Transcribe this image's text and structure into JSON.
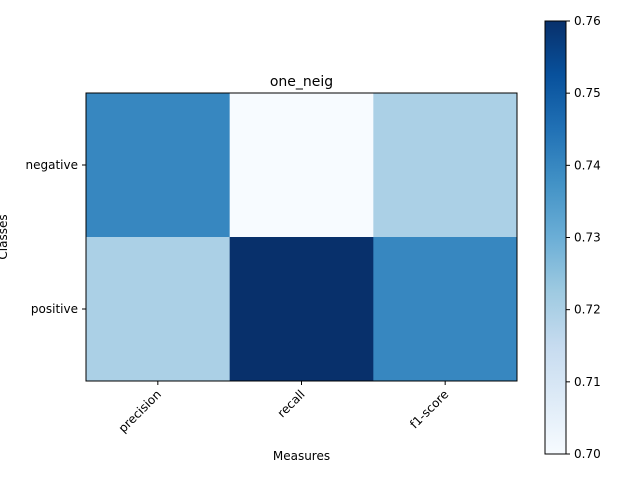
{
  "chart_data": {
    "type": "heatmap",
    "title": "one_neig",
    "xlabel": "Measures",
    "ylabel": "Classes",
    "x_categories": [
      "precision",
      "recall",
      "f1-score"
    ],
    "y_categories": [
      "negative",
      "positive"
    ],
    "values": [
      [
        0.74,
        0.7,
        0.72
      ],
      [
        0.72,
        0.76,
        0.74
      ]
    ],
    "colormap": "Blues",
    "colorbar": {
      "range": [
        0.7,
        0.76
      ],
      "ticks": [
        "0.70",
        "0.71",
        "0.72",
        "0.73",
        "0.74",
        "0.75",
        "0.76"
      ],
      "tick_values": [
        0.7,
        0.71,
        0.72,
        0.73,
        0.74,
        0.75,
        0.76
      ]
    },
    "grid": false
  }
}
